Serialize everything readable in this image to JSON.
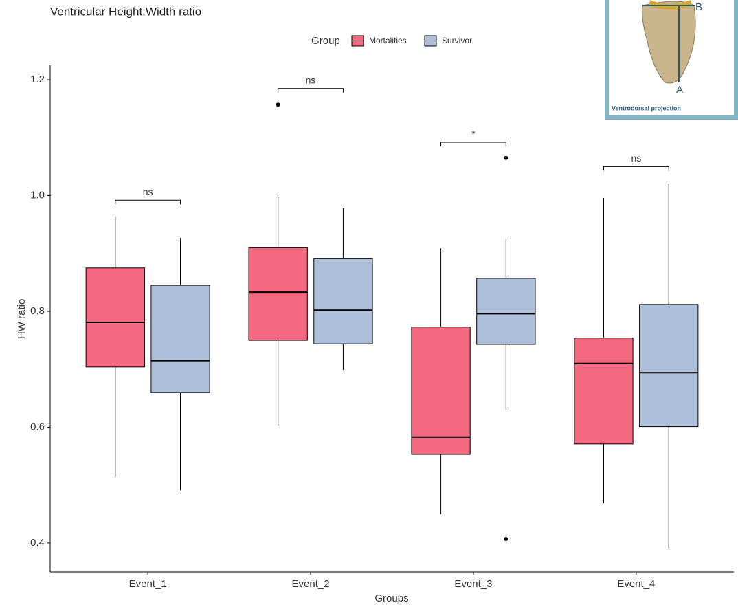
{
  "chart_data": {
    "type": "boxplot",
    "title": "Ventricular Height:Width ratio",
    "x_label": "Groups",
    "y_label": "HW ratio",
    "legend_title": "Group",
    "legend_position": "top",
    "categories": [
      "Event_1",
      "Event_2",
      "Event_3",
      "Event_4"
    ],
    "series": [
      {
        "name": "Mortalities",
        "color": "#f4697f",
        "whisker_low": [
          0.514,
          0.603,
          0.45,
          0.469
        ],
        "q1": [
          0.704,
          0.75,
          0.553,
          0.571
        ],
        "median": [
          0.781,
          0.833,
          0.583,
          0.71
        ],
        "q3": [
          0.875,
          0.91,
          0.773,
          0.754
        ],
        "whisker_high": [
          0.964,
          0.997,
          0.909,
          0.996
        ],
        "outliers": [
          [],
          [
            1.157
          ],
          [],
          []
        ]
      },
      {
        "name": "Survivor",
        "color": "#aec0da",
        "whisker_low": [
          0.491,
          0.699,
          0.63,
          0.391
        ],
        "q1": [
          0.66,
          0.744,
          0.743,
          0.601
        ],
        "median": [
          0.715,
          0.802,
          0.796,
          0.694
        ],
        "q3": [
          0.845,
          0.891,
          0.857,
          0.812
        ],
        "whisker_high": [
          0.927,
          0.978,
          0.925,
          1.021
        ],
        "outliers": [
          [],
          [],
          [
            1.065,
            0.407
          ],
          []
        ]
      }
    ],
    "annotations": [
      {
        "label": "ns",
        "y": 0.992
      },
      {
        "label": "ns",
        "y": 1.185
      },
      {
        "label": "*",
        "y": 1.092
      },
      {
        "label": "ns",
        "y": 1.05
      }
    ],
    "ylim": [
      0.35,
      1.225
    ],
    "yticks": [
      0.4,
      0.6,
      0.8,
      {
        "value": 1.0,
        "label": "1.0"
      },
      1.2
    ],
    "grid": false,
    "inset": {
      "label_b": "B",
      "label_a": "A",
      "caption": "Ventrodorsal projection"
    }
  }
}
